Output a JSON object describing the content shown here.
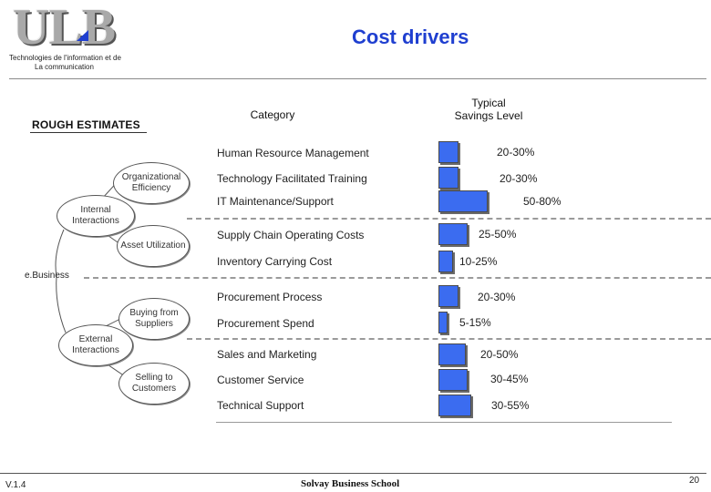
{
  "header": {
    "logo_text": "ULB",
    "subtitle_line1": "Technologies de l'information et de",
    "subtitle_line2": "La communication",
    "title": "Cost drivers"
  },
  "columns": {
    "category": "Category",
    "savings_line1": "Typical",
    "savings_line2": "Savings Level"
  },
  "rough_estimates": "ROUGH ESTIMATES",
  "tree": {
    "root": "e.Business",
    "internal": "Internal Interactions",
    "external": "External Interactions",
    "org_efficiency": "Organizational Efficiency",
    "asset_utilization": "Asset Utilization",
    "buying": "Buying from Suppliers",
    "selling": "Selling to Customers"
  },
  "rows": [
    {
      "label": "Human Resource Management",
      "savings": "20-30%",
      "bar_fraction": 0.25
    },
    {
      "label": "Technology Facilitated Training",
      "savings": "20-30%",
      "bar_fraction": 0.25
    },
    {
      "label": "IT Maintenance/Support",
      "savings": "50-80%",
      "bar_fraction": 0.65
    },
    {
      "label": "Supply Chain Operating Costs",
      "savings": "25-50%",
      "bar_fraction": 0.375
    },
    {
      "label": "Inventory Carrying Cost",
      "savings": "10-25%",
      "bar_fraction": 0.175
    },
    {
      "label": "Procurement Process",
      "savings": "20-30%",
      "bar_fraction": 0.25
    },
    {
      "label": "Procurement Spend",
      "savings": "5-15%",
      "bar_fraction": 0.1
    },
    {
      "label": "Sales and Marketing",
      "savings": "20-50%",
      "bar_fraction": 0.35
    },
    {
      "label": "Customer Service",
      "savings": "30-45%",
      "bar_fraction": 0.375
    },
    {
      "label": "Technical Support",
      "savings": "30-55%",
      "bar_fraction": 0.425
    }
  ],
  "footer": {
    "version": "V.1.4",
    "school": "Solvay Business School",
    "page": "20"
  },
  "colors": {
    "accent": "#1f3fd0",
    "bar": "#3b6cf0"
  }
}
